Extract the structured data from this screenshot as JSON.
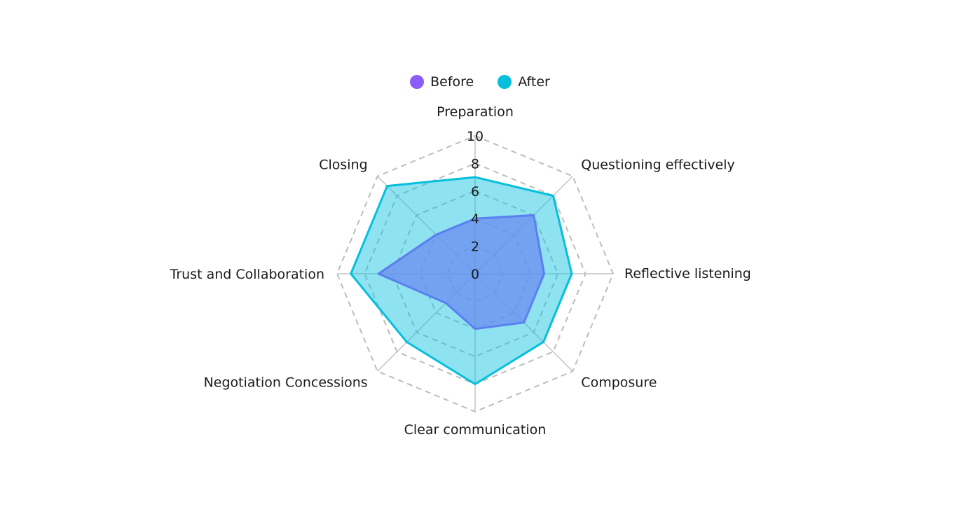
{
  "chart_data": {
    "type": "radar",
    "axes": [
      "Preparation",
      "Questioning effectively",
      "Reflective listening",
      "Composure",
      "Clear communication",
      "Negotiation Concessions",
      "Trust and Collaboration",
      "Closing"
    ],
    "rlim": [
      0,
      10
    ],
    "ticks": [
      "0",
      "2",
      "4",
      "6",
      "8",
      "10"
    ],
    "grid": true,
    "legend_position": "top",
    "series": [
      {
        "name": "Before",
        "values": [
          4,
          6,
          5,
          5,
          4,
          3,
          7,
          4
        ],
        "color": "#8b5cf6"
      },
      {
        "name": "After",
        "values": [
          7,
          8,
          7,
          7,
          8,
          7,
          9,
          9
        ],
        "color": "#06bfdc"
      }
    ]
  }
}
